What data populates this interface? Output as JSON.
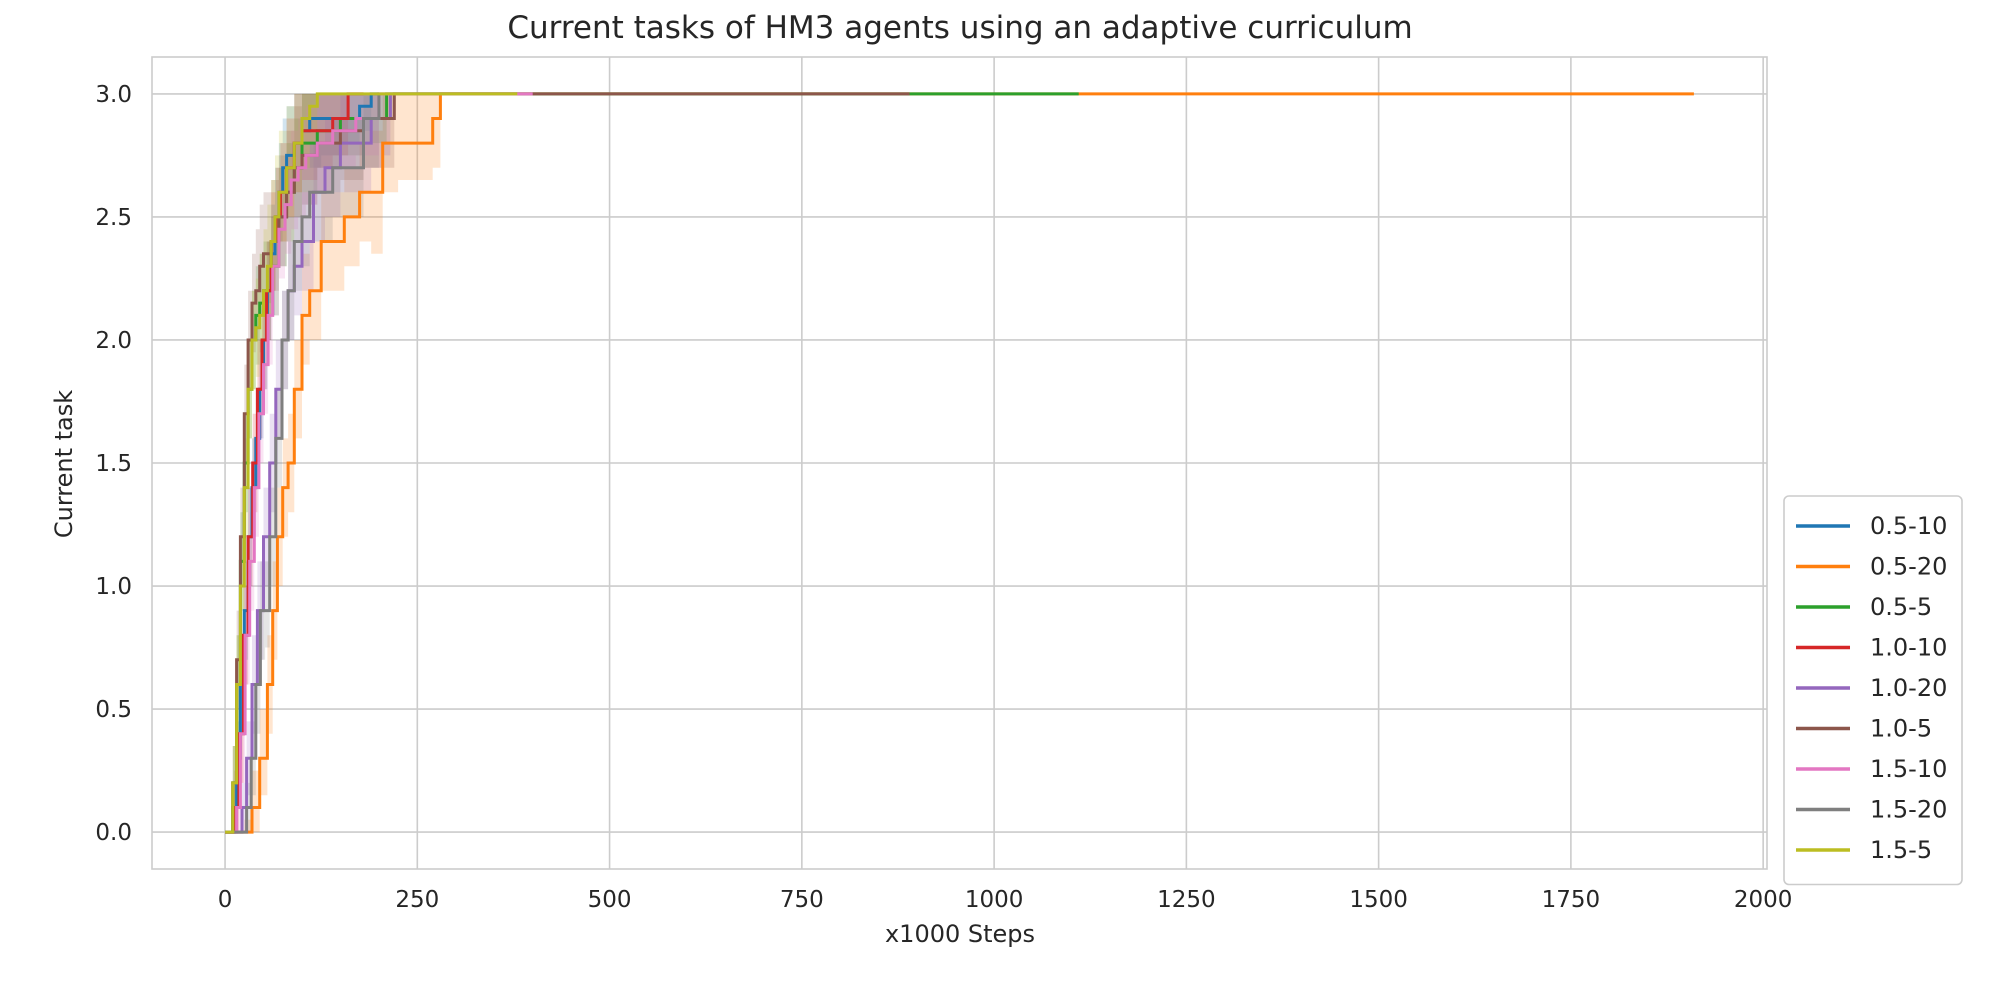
{
  "chart_data": {
    "type": "line",
    "title": "Current tasks of HM3 agents using an adaptive curriculum",
    "xlabel": "x1000 Steps",
    "ylabel": "Current task",
    "xlim": [
      -95,
      2005
    ],
    "ylim": [
      -0.15,
      3.15
    ],
    "xticks": [
      0,
      250,
      500,
      750,
      1000,
      1250,
      1500,
      1750,
      2000
    ],
    "yticks": [
      0.0,
      0.5,
      1.0,
      1.5,
      2.0,
      2.5,
      3.0
    ],
    "ytick_labels": [
      "0.0",
      "0.5",
      "1.0",
      "1.5",
      "2.0",
      "2.5",
      "3.0"
    ],
    "grid": true,
    "legend_position": "lower-right, outside plot",
    "series": [
      {
        "name": "0.5-10",
        "color": "#1f77b4",
        "x": [
          0,
          8,
          10,
          15,
          20,
          25,
          30,
          35,
          40,
          45,
          50,
          55,
          60,
          65,
          70,
          75,
          80,
          90,
          100,
          110,
          125,
          150,
          175,
          190,
          200
        ],
        "y": [
          0,
          0,
          0.1,
          0.3,
          0.6,
          0.9,
          1.2,
          1.4,
          1.6,
          1.8,
          2.0,
          2.2,
          2.35,
          2.5,
          2.6,
          2.7,
          2.75,
          2.8,
          2.85,
          2.9,
          2.9,
          2.9,
          2.95,
          3.0,
          3.0
        ],
        "lo": [
          0,
          0,
          0.0,
          0.15,
          0.4,
          0.7,
          1.0,
          1.2,
          1.4,
          1.6,
          1.8,
          2.0,
          2.1,
          2.3,
          2.4,
          2.5,
          2.6,
          2.6,
          2.7,
          2.7,
          2.75,
          2.8,
          2.85,
          3.0,
          3.0
        ],
        "hi": [
          0,
          0,
          0.2,
          0.45,
          0.8,
          1.1,
          1.4,
          1.6,
          1.8,
          2.0,
          2.2,
          2.4,
          2.55,
          2.7,
          2.8,
          2.9,
          2.95,
          3.0,
          3.0,
          3.0,
          3.0,
          3.0,
          3.0,
          3.0,
          3.0
        ]
      },
      {
        "name": "0.5-20",
        "color": "#ff7f0e",
        "x": [
          0,
          15,
          25,
          35,
          45,
          55,
          62,
          68,
          75,
          82,
          90,
          100,
          110,
          125,
          155,
          175,
          190,
          205,
          225,
          270,
          280,
          290,
          500,
          1000,
          1500,
          1910
        ],
        "y": [
          0,
          0,
          0,
          0.1,
          0.3,
          0.6,
          0.9,
          1.2,
          1.4,
          1.5,
          1.8,
          2.1,
          2.2,
          2.4,
          2.5,
          2.6,
          2.6,
          2.8,
          2.8,
          2.9,
          3.0,
          3.0,
          3.0,
          3.0,
          3.0,
          3.0
        ],
        "lo": [
          0,
          0,
          0,
          0.0,
          0.15,
          0.4,
          0.7,
          1.0,
          1.2,
          1.3,
          1.6,
          1.9,
          2.0,
          2.2,
          2.3,
          2.4,
          2.35,
          2.6,
          2.65,
          2.7,
          3.0,
          3.0,
          3.0,
          3.0,
          3.0,
          3.0
        ],
        "hi": [
          0,
          0,
          0.05,
          0.25,
          0.5,
          0.8,
          1.1,
          1.4,
          1.6,
          1.7,
          2.0,
          2.35,
          2.4,
          2.6,
          2.7,
          2.8,
          2.85,
          3.0,
          3.0,
          3.0,
          3.0,
          3.0,
          3.0,
          3.0,
          3.0,
          3.0
        ]
      },
      {
        "name": "0.5-5",
        "color": "#2ca02c",
        "x": [
          0,
          5,
          10,
          15,
          20,
          25,
          30,
          35,
          40,
          45,
          50,
          60,
          70,
          80,
          90,
          100,
          120,
          150,
          180,
          210,
          300,
          500,
          900,
          1110
        ],
        "y": [
          0,
          0,
          0.2,
          0.6,
          1.1,
          1.5,
          1.8,
          2.0,
          2.1,
          2.15,
          2.2,
          2.3,
          2.5,
          2.6,
          2.7,
          2.8,
          2.85,
          2.9,
          2.9,
          3.0,
          3.0,
          3.0,
          3.0,
          3.0
        ],
        "lo": [
          0,
          0,
          0.05,
          0.4,
          0.9,
          1.3,
          1.6,
          1.8,
          1.9,
          1.95,
          2.0,
          2.1,
          2.3,
          2.4,
          2.5,
          2.6,
          2.7,
          2.75,
          2.8,
          3.0,
          3.0,
          3.0,
          3.0,
          3.0
        ],
        "hi": [
          0,
          0,
          0.35,
          0.8,
          1.3,
          1.7,
          2.0,
          2.2,
          2.3,
          2.35,
          2.4,
          2.5,
          2.7,
          2.8,
          2.9,
          3.0,
          3.0,
          3.0,
          3.0,
          3.0,
          3.0,
          3.0,
          3.0,
          3.0
        ]
      },
      {
        "name": "1.0-10",
        "color": "#d62728",
        "x": [
          0,
          8,
          12,
          18,
          24,
          30,
          36,
          42,
          48,
          54,
          60,
          66,
          72,
          80,
          90,
          100,
          120,
          140,
          160,
          180
        ],
        "y": [
          0,
          0,
          0.1,
          0.4,
          0.8,
          1.2,
          1.5,
          1.8,
          2.0,
          2.2,
          2.4,
          2.5,
          2.6,
          2.7,
          2.8,
          2.85,
          2.85,
          2.9,
          3.0,
          3.0
        ],
        "lo": [
          0,
          0,
          0.0,
          0.2,
          0.6,
          1.0,
          1.3,
          1.6,
          1.8,
          2.0,
          2.2,
          2.3,
          2.4,
          2.5,
          2.6,
          2.65,
          2.7,
          2.75,
          3.0,
          3.0
        ],
        "hi": [
          0,
          0,
          0.25,
          0.6,
          1.0,
          1.4,
          1.7,
          2.0,
          2.2,
          2.4,
          2.6,
          2.7,
          2.8,
          2.9,
          3.0,
          3.0,
          3.0,
          3.0,
          3.0,
          3.0
        ]
      },
      {
        "name": "1.0-20",
        "color": "#9467bd",
        "x": [
          0,
          15,
          22,
          28,
          35,
          42,
          50,
          58,
          66,
          74,
          82,
          90,
          100,
          115,
          130,
          150,
          170,
          190,
          205,
          215
        ],
        "y": [
          0,
          0,
          0.1,
          0.3,
          0.6,
          0.9,
          1.2,
          1.5,
          1.8,
          2.0,
          2.2,
          2.3,
          2.4,
          2.6,
          2.7,
          2.8,
          2.8,
          2.9,
          2.9,
          3.0
        ],
        "lo": [
          0,
          0,
          0.0,
          0.15,
          0.4,
          0.7,
          1.0,
          1.3,
          1.6,
          1.8,
          2.0,
          2.1,
          2.2,
          2.4,
          2.5,
          2.6,
          2.6,
          2.7,
          2.75,
          3.0
        ],
        "hi": [
          0,
          0,
          0.2,
          0.45,
          0.8,
          1.1,
          1.4,
          1.7,
          2.0,
          2.2,
          2.4,
          2.5,
          2.6,
          2.8,
          2.9,
          3.0,
          3.0,
          3.0,
          3.0,
          3.0
        ]
      },
      {
        "name": "1.0-5",
        "color": "#8c564b",
        "x": [
          0,
          5,
          10,
          15,
          20,
          25,
          30,
          35,
          40,
          45,
          50,
          60,
          70,
          80,
          90,
          100,
          120,
          150,
          180,
          220,
          300,
          400,
          600,
          890
        ],
        "y": [
          0,
          0,
          0.2,
          0.7,
          1.2,
          1.7,
          2.0,
          2.15,
          2.2,
          2.3,
          2.35,
          2.4,
          2.5,
          2.6,
          2.7,
          2.75,
          2.8,
          2.85,
          2.9,
          3.0,
          3.0,
          3.0,
          3.0,
          3.0
        ],
        "lo": [
          0,
          0,
          0.05,
          0.5,
          1.0,
          1.5,
          1.8,
          1.95,
          2.0,
          2.1,
          2.15,
          2.2,
          2.3,
          2.4,
          2.5,
          2.55,
          2.6,
          2.65,
          2.7,
          3.0,
          3.0,
          3.0,
          3.0,
          3.0
        ],
        "hi": [
          0,
          0,
          0.35,
          0.9,
          1.4,
          1.9,
          2.2,
          2.35,
          2.45,
          2.55,
          2.6,
          2.65,
          2.75,
          2.85,
          2.95,
          3.0,
          3.0,
          3.0,
          3.0,
          3.0,
          3.0,
          3.0,
          3.0,
          3.0
        ]
      },
      {
        "name": "1.5-10",
        "color": "#e377c2",
        "x": [
          0,
          10,
          15,
          20,
          26,
          32,
          38,
          44,
          50,
          56,
          62,
          70,
          78,
          86,
          95,
          105,
          120,
          140,
          170,
          200,
          300,
          400
        ],
        "y": [
          0,
          0,
          0.1,
          0.4,
          0.8,
          1.1,
          1.4,
          1.7,
          1.9,
          2.1,
          2.3,
          2.45,
          2.55,
          2.65,
          2.7,
          2.75,
          2.8,
          2.85,
          2.9,
          3.0,
          3.0,
          3.0
        ],
        "lo": [
          0,
          0,
          0.0,
          0.2,
          0.6,
          0.9,
          1.2,
          1.5,
          1.7,
          1.9,
          2.1,
          2.25,
          2.35,
          2.45,
          2.5,
          2.55,
          2.6,
          2.7,
          2.75,
          3.0,
          3.0,
          3.0
        ],
        "hi": [
          0,
          0,
          0.25,
          0.6,
          1.0,
          1.3,
          1.6,
          1.9,
          2.1,
          2.3,
          2.5,
          2.65,
          2.75,
          2.85,
          2.9,
          2.95,
          3.0,
          3.0,
          3.0,
          3.0,
          3.0,
          3.0
        ]
      },
      {
        "name": "1.5-20",
        "color": "#7f7f7f",
        "x": [
          0,
          20,
          28,
          34,
          40,
          46,
          52,
          58,
          66,
          74,
          82,
          90,
          100,
          110,
          125,
          140,
          160,
          180,
          200
        ],
        "y": [
          0,
          0,
          0.1,
          0.3,
          0.6,
          0.9,
          0.9,
          1.2,
          1.6,
          2.0,
          2.2,
          2.4,
          2.5,
          2.6,
          2.6,
          2.7,
          2.7,
          2.9,
          3.0
        ],
        "lo": [
          0,
          0,
          0.0,
          0.15,
          0.4,
          0.7,
          0.75,
          1.0,
          1.4,
          1.8,
          2.0,
          2.2,
          2.3,
          2.4,
          2.4,
          2.5,
          2.5,
          2.7,
          3.0
        ],
        "hi": [
          0,
          0,
          0.2,
          0.45,
          0.8,
          1.1,
          1.1,
          1.4,
          1.8,
          2.2,
          2.4,
          2.6,
          2.7,
          2.8,
          2.8,
          2.9,
          2.9,
          3.0,
          3.0
        ]
      },
      {
        "name": "1.5-5",
        "color": "#bcbd22",
        "x": [
          0,
          5,
          10,
          15,
          20,
          25,
          30,
          35,
          40,
          45,
          50,
          55,
          60,
          65,
          70,
          80,
          90,
          100,
          110,
          120,
          200,
          300,
          380
        ],
        "y": [
          0,
          0,
          0.2,
          0.6,
          1.0,
          1.4,
          1.8,
          2.0,
          2.05,
          2.1,
          2.2,
          2.3,
          2.4,
          2.5,
          2.6,
          2.7,
          2.8,
          2.9,
          2.95,
          3.0,
          3.0,
          3.0,
          3.0
        ],
        "lo": [
          0,
          0,
          0.05,
          0.4,
          0.8,
          1.2,
          1.6,
          1.8,
          1.85,
          1.9,
          2.0,
          2.1,
          2.2,
          2.3,
          2.4,
          2.5,
          2.6,
          2.7,
          2.8,
          3.0,
          3.0,
          3.0,
          3.0
        ],
        "hi": [
          0,
          0,
          0.35,
          0.8,
          1.2,
          1.6,
          2.0,
          2.2,
          2.25,
          2.35,
          2.45,
          2.55,
          2.65,
          2.75,
          2.85,
          2.95,
          3.0,
          3.0,
          3.0,
          3.0,
          3.0,
          3.0,
          3.0
        ]
      }
    ]
  }
}
